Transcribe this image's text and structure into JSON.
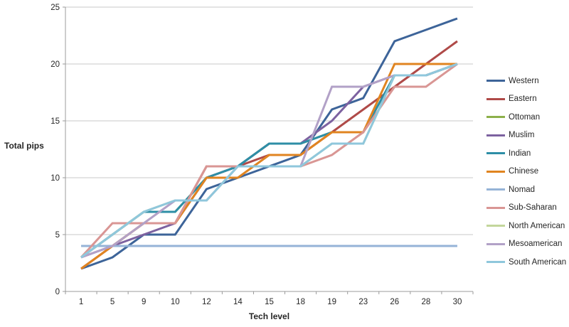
{
  "chart_data": {
    "type": "line",
    "title": "",
    "xlabel": "Tech level",
    "ylabel": "Total pips",
    "categories": [
      "1",
      "5",
      "9",
      "10",
      "12",
      "14",
      "15",
      "18",
      "19",
      "23",
      "26",
      "28",
      "30"
    ],
    "y_ticks": [
      0,
      5,
      10,
      15,
      20,
      25
    ],
    "ylim": [
      0,
      25
    ],
    "grid": true,
    "legend_position": "right",
    "axis_color": "#9b9b9b",
    "gridline_color": "#c8c8c8",
    "series": [
      {
        "name": "Western",
        "color": "#3d6499",
        "values": [
          2,
          3,
          5,
          5,
          9,
          10,
          11,
          12,
          16,
          17,
          22,
          23,
          24
        ]
      },
      {
        "name": "Eastern",
        "color": "#af4a48",
        "values": [
          2,
          4,
          6,
          6,
          11,
          11,
          12,
          12,
          14,
          16,
          18,
          20,
          22
        ]
      },
      {
        "name": "Ottoman",
        "color": "#8db04a",
        "values": [
          3,
          5,
          7,
          7,
          10,
          11,
          13,
          13,
          14,
          14,
          19,
          19,
          20
        ]
      },
      {
        "name": "Muslim",
        "color": "#7d62a0",
        "values": [
          3,
          4,
          5,
          6,
          10,
          11,
          13,
          13,
          15,
          18,
          19,
          19,
          20
        ]
      },
      {
        "name": "Indian",
        "color": "#2e8ea6",
        "values": [
          3,
          5,
          7,
          7,
          10,
          11,
          13,
          13,
          14,
          14,
          19,
          19,
          20
        ]
      },
      {
        "name": "Chinese",
        "color": "#e08420",
        "values": [
          2,
          4,
          6,
          6,
          10,
          10,
          12,
          12,
          14,
          14,
          20,
          20,
          20
        ]
      },
      {
        "name": "Nomad",
        "color": "#95b3d7",
        "values": [
          4,
          4,
          4,
          4,
          4,
          4,
          4,
          4,
          4,
          4,
          4,
          4,
          4
        ]
      },
      {
        "name": "Sub-Saharan",
        "color": "#d99694",
        "values": [
          3,
          6,
          6,
          6,
          11,
          11,
          11,
          11,
          12,
          14,
          18,
          18,
          20
        ]
      },
      {
        "name": "North American",
        "color": "#c3d69b",
        "values": [
          3,
          5,
          7,
          8,
          8,
          11,
          11,
          11,
          13,
          13,
          19,
          19,
          20
        ]
      },
      {
        "name": "Mesoamerican",
        "color": "#b2a1c7",
        "values": [
          3,
          4,
          6,
          8,
          8,
          11,
          11,
          11,
          18,
          18,
          19,
          19,
          20
        ]
      },
      {
        "name": "South American",
        "color": "#8fc7dc",
        "values": [
          3,
          5,
          7,
          8,
          8,
          11,
          11,
          11,
          13,
          13,
          19,
          19,
          20
        ]
      }
    ]
  }
}
